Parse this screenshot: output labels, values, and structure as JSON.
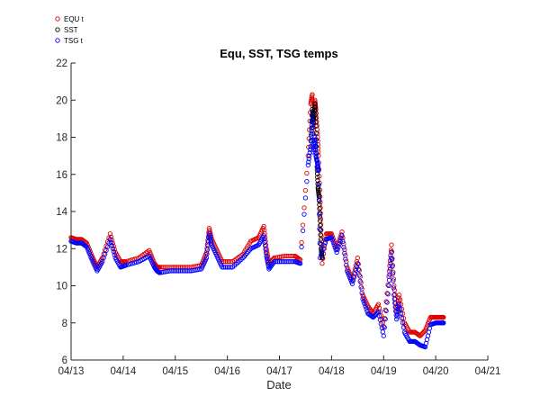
{
  "chart_data": {
    "type": "scatter",
    "title": "Equ, SST, TSG temps",
    "xlabel": "Date",
    "ylabel": "",
    "x_ticks": [
      "04/13",
      "04/14",
      "04/15",
      "04/16",
      "04/17",
      "04/18",
      "04/19",
      "04/20",
      "04/21"
    ],
    "x_tick_values": [
      13,
      14,
      15,
      16,
      17,
      18,
      19,
      20,
      21
    ],
    "y_ticks": [
      "6",
      "8",
      "10",
      "12",
      "14",
      "16",
      "18",
      "20",
      "22"
    ],
    "xlim": [
      13,
      21
    ],
    "ylim": [
      6,
      22
    ],
    "grid": false,
    "legend_position": "top-left",
    "legend": [
      "EQU t",
      "SST",
      "TSG t"
    ],
    "x_unit": "day of April",
    "series": [
      {
        "name": "EQU t",
        "color": "#e00000",
        "x": [
          13.0,
          13.1,
          13.2,
          13.3,
          13.4,
          13.5,
          13.6,
          13.75,
          13.85,
          13.95,
          14.05,
          14.3,
          14.5,
          14.6,
          14.65,
          14.7,
          14.9,
          15.1,
          15.3,
          15.5,
          15.6,
          15.65,
          15.7,
          15.8,
          15.9,
          16.1,
          16.3,
          16.45,
          16.6,
          16.7,
          16.75,
          16.8,
          16.9,
          17.1,
          17.3,
          17.4,
          17.55,
          17.6,
          17.63,
          17.65,
          17.68,
          17.7,
          17.73,
          17.75,
          17.78,
          17.8,
          17.82,
          17.9,
          18.0,
          18.1,
          18.2,
          18.3,
          18.4,
          18.5,
          18.6,
          18.7,
          18.8,
          18.9,
          19.0,
          19.1,
          19.15,
          19.2,
          19.25,
          19.3,
          19.4,
          19.5,
          19.6,
          19.7,
          19.8,
          19.9,
          20.0,
          20.1,
          20.15
        ],
        "y": [
          12.6,
          12.5,
          12.5,
          12.3,
          11.6,
          11.0,
          11.5,
          12.8,
          11.8,
          11.3,
          11.3,
          11.5,
          11.9,
          11.2,
          11.0,
          11.0,
          11.0,
          11.0,
          11.0,
          11.1,
          11.8,
          13.1,
          12.5,
          11.9,
          11.3,
          11.3,
          11.7,
          12.4,
          12.6,
          13.2,
          12.0,
          11.2,
          11.5,
          11.6,
          11.6,
          11.4,
          17.0,
          19.8,
          20.3,
          18.5,
          20.0,
          19.5,
          18.2,
          17.0,
          14.8,
          13.0,
          11.2,
          12.8,
          12.8,
          12.0,
          12.9,
          11.0,
          10.3,
          11.5,
          9.5,
          8.9,
          8.5,
          9.0,
          7.8,
          10.5,
          12.2,
          10.0,
          8.6,
          9.5,
          8.0,
          7.5,
          7.5,
          7.3,
          7.6,
          8.3,
          8.3,
          8.3,
          8.3
        ]
      },
      {
        "name": "SST",
        "color": "#000000",
        "x": [
          17.6,
          17.63,
          17.65,
          17.68,
          17.7,
          17.72,
          17.74,
          17.76,
          17.78,
          17.8,
          17.82
        ],
        "y": [
          17.5,
          19.5,
          18.8,
          19.8,
          18.6,
          16.4,
          15.3,
          14.8,
          13.5,
          12.0,
          11.5
        ]
      },
      {
        "name": "TSG t",
        "color": "#0000ff",
        "x": [
          13.0,
          13.1,
          13.2,
          13.3,
          13.4,
          13.5,
          13.6,
          13.75,
          13.85,
          13.95,
          14.05,
          14.3,
          14.5,
          14.6,
          14.65,
          14.7,
          14.9,
          15.1,
          15.3,
          15.5,
          15.6,
          15.65,
          15.7,
          15.8,
          15.9,
          16.1,
          16.3,
          16.45,
          16.6,
          16.7,
          16.75,
          16.8,
          16.9,
          17.1,
          17.3,
          17.4,
          17.55,
          17.6,
          17.63,
          17.65,
          17.68,
          17.7,
          17.73,
          17.75,
          17.78,
          17.9,
          18.0,
          18.1,
          18.2,
          18.3,
          18.4,
          18.5,
          18.6,
          18.7,
          18.8,
          18.9,
          19.0,
          19.1,
          19.15,
          19.2,
          19.25,
          19.3,
          19.4,
          19.5,
          19.6,
          19.7,
          19.8,
          19.9,
          20.0,
          20.1,
          20.15
        ],
        "y": [
          12.4,
          12.3,
          12.3,
          12.1,
          11.4,
          10.8,
          11.3,
          12.5,
          11.5,
          11.0,
          11.1,
          11.3,
          11.6,
          11.0,
          10.8,
          10.7,
          10.8,
          10.8,
          10.8,
          10.9,
          11.5,
          12.8,
          12.2,
          11.6,
          11.0,
          11.0,
          11.5,
          12.0,
          12.2,
          12.7,
          11.6,
          10.9,
          11.3,
          11.3,
          11.3,
          11.2,
          16.5,
          17.5,
          19.2,
          17.2,
          18.0,
          17.0,
          16.6,
          16.2,
          11.5,
          12.5,
          12.6,
          11.8,
          12.7,
          10.8,
          10.1,
          11.2,
          9.3,
          8.5,
          8.3,
          8.6,
          7.3,
          10.0,
          11.8,
          9.5,
          8.2,
          9.0,
          7.5,
          7.0,
          7.0,
          6.8,
          6.7,
          7.9,
          8.0,
          8.0,
          8.0
        ]
      }
    ]
  }
}
